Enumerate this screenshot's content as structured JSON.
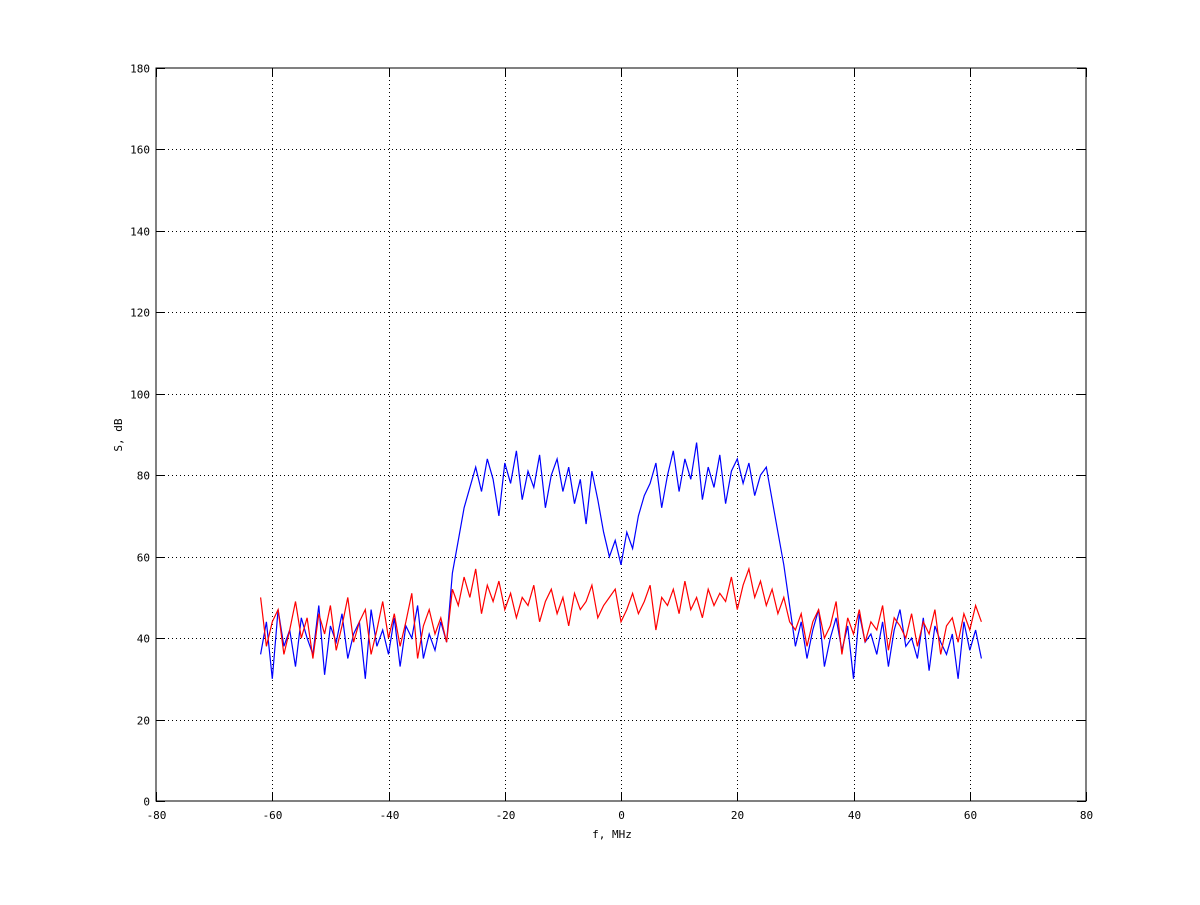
{
  "chart_data": {
    "type": "line",
    "title": "",
    "xlabel": "f, MHz",
    "ylabel": "S, dB",
    "xlim": [
      -80,
      80
    ],
    "ylim": [
      0,
      180
    ],
    "xticks": [
      -80,
      -60,
      -40,
      -20,
      0,
      20,
      40,
      60,
      80
    ],
    "yticks": [
      0,
      20,
      40,
      60,
      80,
      100,
      120,
      140,
      160,
      180
    ],
    "grid": true,
    "grid_style": "dotted",
    "legend": "none",
    "x": [
      -62,
      -61,
      -60,
      -59,
      -58,
      -57,
      -56,
      -55,
      -54,
      -53,
      -52,
      -51,
      -50,
      -49,
      -48,
      -47,
      -46,
      -45,
      -44,
      -43,
      -42,
      -41,
      -40,
      -39,
      -38,
      -37,
      -36,
      -35,
      -34,
      -33,
      -32,
      -31,
      -30,
      -29,
      -28,
      -27,
      -26,
      -25,
      -24,
      -23,
      -22,
      -21,
      -20,
      -19,
      -18,
      -17,
      -16,
      -15,
      -14,
      -13,
      -12,
      -11,
      -10,
      -9,
      -8,
      -7,
      -6,
      -5,
      -4,
      -3,
      -2,
      -1,
      0,
      1,
      2,
      3,
      4,
      5,
      6,
      7,
      8,
      9,
      10,
      11,
      12,
      13,
      14,
      15,
      16,
      17,
      18,
      19,
      20,
      21,
      22,
      23,
      24,
      25,
      26,
      27,
      28,
      29,
      30,
      31,
      32,
      33,
      34,
      35,
      36,
      37,
      38,
      39,
      40,
      41,
      42,
      43,
      44,
      45,
      46,
      47,
      48,
      49,
      50,
      51,
      52,
      53,
      54,
      55,
      56,
      57,
      58,
      59,
      60,
      61,
      62
    ],
    "series": [
      {
        "color": "#0000ff",
        "values": [
          36,
          44,
          30,
          47,
          38,
          42,
          33,
          45,
          40,
          36,
          48,
          31,
          43,
          39,
          46,
          35,
          41,
          44,
          30,
          47,
          38,
          42,
          36,
          45,
          33,
          43,
          40,
          48,
          35,
          41,
          37,
          44,
          39,
          56,
          64,
          72,
          77,
          82,
          76,
          84,
          79,
          70,
          83,
          78,
          86,
          74,
          81,
          77,
          85,
          72,
          80,
          84,
          76,
          82,
          73,
          79,
          68,
          81,
          74,
          66,
          60,
          64,
          58,
          66,
          62,
          70,
          75,
          78,
          83,
          72,
          80,
          86,
          76,
          84,
          79,
          88,
          74,
          82,
          77,
          85,
          73,
          81,
          84,
          78,
          83,
          75,
          80,
          82,
          74,
          66,
          58,
          48,
          38,
          44,
          35,
          42,
          47,
          33,
          40,
          45,
          37,
          43,
          30,
          46,
          39,
          41,
          36,
          44,
          33,
          42,
          47,
          38,
          40,
          35,
          45,
          32,
          43,
          39,
          36,
          41,
          30,
          44,
          37,
          42,
          35
        ]
      },
      {
        "color": "#ff0000",
        "values": [
          50,
          38,
          44,
          47,
          36,
          42,
          49,
          40,
          45,
          35,
          46,
          41,
          48,
          37,
          43,
          50,
          39,
          44,
          47,
          36,
          42,
          49,
          40,
          46,
          38,
          44,
          51,
          35,
          43,
          47,
          41,
          45,
          39,
          52,
          48,
          55,
          50,
          57,
          46,
          53,
          49,
          54,
          47,
          51,
          45,
          50,
          48,
          53,
          44,
          49,
          52,
          46,
          50,
          43,
          51,
          47,
          49,
          53,
          45,
          48,
          50,
          52,
          44,
          47,
          51,
          46,
          49,
          53,
          42,
          50,
          48,
          52,
          46,
          54,
          47,
          50,
          45,
          52,
          48,
          51,
          49,
          55,
          47,
          53,
          57,
          50,
          54,
          48,
          52,
          46,
          50,
          44,
          42,
          46,
          38,
          44,
          47,
          40,
          43,
          49,
          36,
          45,
          41,
          47,
          39,
          44,
          42,
          48,
          37,
          45,
          43,
          40,
          46,
          38,
          44,
          41,
          47,
          36,
          43,
          45,
          39,
          46,
          42,
          48,
          44
        ]
      }
    ]
  }
}
